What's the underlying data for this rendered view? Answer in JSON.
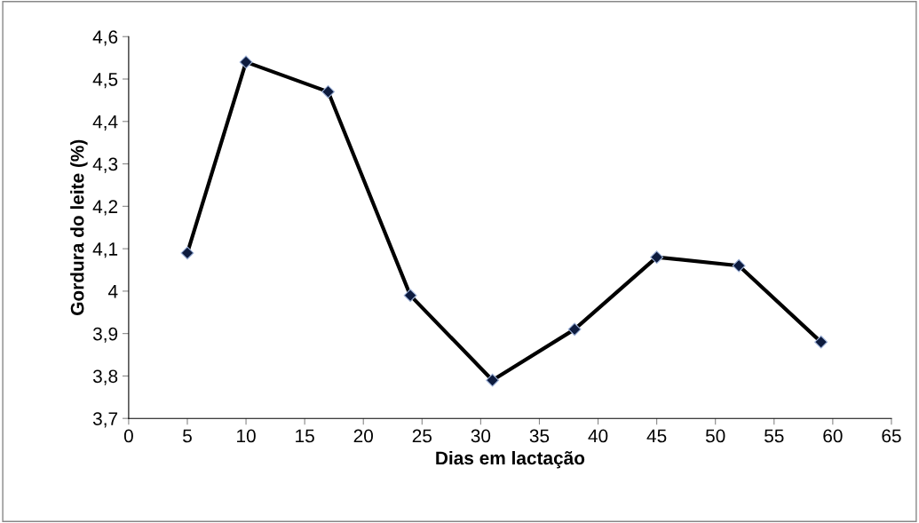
{
  "chart_data": {
    "type": "line",
    "xlabel": "Dias em lactação",
    "ylabel": "Gordura do leite (%)",
    "x": [
      5,
      10,
      17,
      24,
      31,
      38,
      45,
      52,
      59
    ],
    "series": [
      {
        "color": "#000000",
        "values": [
          4.09,
          4.54,
          4.47,
          3.99,
          3.79,
          3.91,
          4.08,
          4.06,
          3.88
        ]
      }
    ],
    "marker": "diamond",
    "line_style": "solid",
    "grid": false,
    "legend": false,
    "xlim": [
      0,
      65
    ],
    "xticks": [
      0,
      5,
      10,
      15,
      20,
      25,
      30,
      35,
      40,
      45,
      50,
      55,
      60,
      65
    ],
    "ylim": [
      3.7,
      4.6
    ],
    "yticks": [
      {
        "value": 3.7,
        "label": "3,7"
      },
      {
        "value": 3.8,
        "label": "3,8"
      },
      {
        "value": 3.9,
        "label": "3,9"
      },
      {
        "value": 4,
        "label": "4"
      },
      {
        "value": 4.1,
        "label": "4,1"
      },
      {
        "value": 4.2,
        "label": "4,2"
      },
      {
        "value": 4.3,
        "label": "4,3"
      },
      {
        "value": 4.4,
        "label": "4,4"
      },
      {
        "value": 4.5,
        "label": "4,5"
      },
      {
        "value": 4.6,
        "label": "4,6"
      }
    ]
  }
}
